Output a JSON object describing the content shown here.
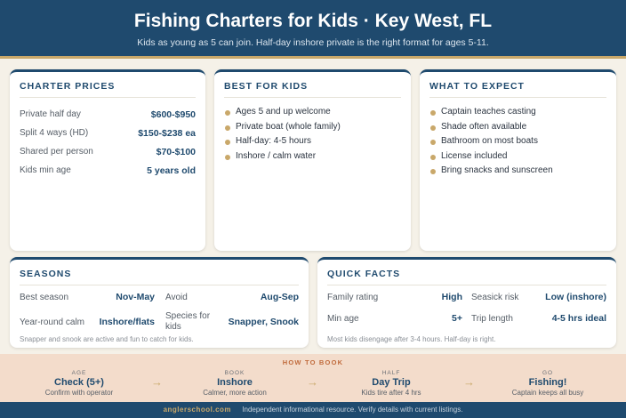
{
  "header": {
    "title": "Fishing Charters for Kids · Key West, FL",
    "subtitle": "Kids as young as 5 can join. Half-day inshore private is the right format for ages 5-11."
  },
  "charter_prices": {
    "title": "CHARTER PRICES",
    "rows": [
      {
        "label": "Private half day",
        "value": "$600-$950"
      },
      {
        "label": "Split 4 ways (HD)",
        "value": "$150-$238 ea"
      },
      {
        "label": "Shared per person",
        "value": "$70-$100"
      },
      {
        "label": "Kids min age",
        "value": "5 years old"
      }
    ]
  },
  "best_for_kids": {
    "title": "BEST FOR KIDS",
    "items": [
      "Ages 5 and up welcome",
      "Private boat (whole family)",
      "Half-day: 4-5 hours",
      "Inshore / calm water"
    ]
  },
  "what_to_expect": {
    "title": "WHAT TO EXPECT",
    "items": [
      "Captain teaches casting",
      "Shade often available",
      "Bathroom on most boats",
      "License included",
      "Bring snacks and sunscreen"
    ]
  },
  "seasons": {
    "title": "SEASONS",
    "best_season_label": "Best season",
    "best_season_value": "Nov-May",
    "avoid_label": "Avoid",
    "avoid_value": "Aug-Sep",
    "year_round_label": "Year-round calm",
    "year_round_value": "Inshore/flats",
    "species_label": "Species for kids",
    "species_value": "Snapper, Snook",
    "note": "Snapper and snook are active and fun to catch for kids."
  },
  "quick_facts": {
    "title": "QUICK FACTS",
    "family_rating_label": "Family rating",
    "family_rating_value": "High",
    "seasick_label": "Seasick risk",
    "seasick_value": "Low (inshore)",
    "min_age_label": "Min age",
    "min_age_value": "5+",
    "trip_length_label": "Trip length",
    "trip_length_value": "4-5 hrs ideal",
    "note": "Most kids disengage after 3-4 hours. Half-day is right."
  },
  "how_to_book": {
    "title": "HOW TO BOOK",
    "steps": [
      {
        "small": "AGE",
        "big": "Check (5+)",
        "desc": "Confirm with operator"
      },
      {
        "small": "BOOK",
        "big": "Inshore",
        "desc": "Calmer, more action"
      },
      {
        "small": "HALF",
        "big": "Day Trip",
        "desc": "Kids tire after 4 hrs"
      },
      {
        "small": "GO",
        "big": "Fishing!",
        "desc": "Captain keeps all busy"
      }
    ],
    "arrow": "→"
  },
  "footer": {
    "brand": "anglerschool.com",
    "text": "Independent informational resource. Verify details with current listings."
  }
}
